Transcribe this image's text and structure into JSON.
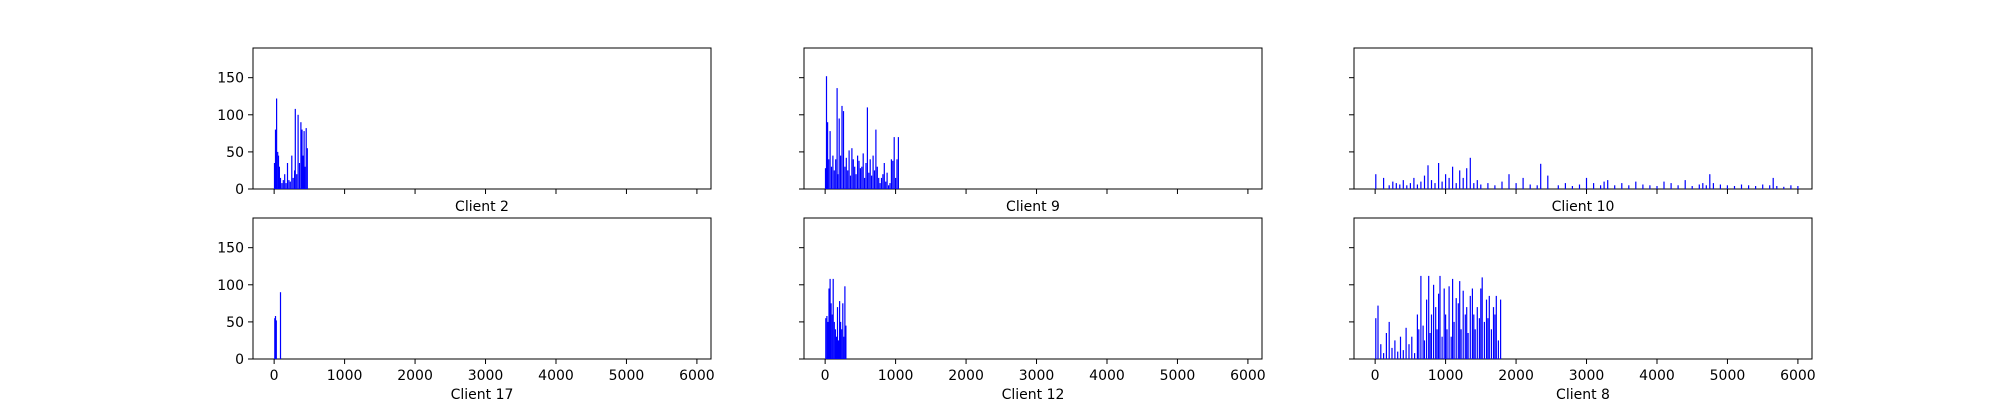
{
  "colors": {
    "bar": "#0000ff",
    "axis": "#000000",
    "background": "#ffffff"
  },
  "chart_data": [
    {
      "type": "bar",
      "title": "Client 2",
      "xlabel": "",
      "ylabel": "",
      "xlim": [
        -300,
        6200
      ],
      "ylim": [
        0,
        190
      ],
      "xticks": [
        0,
        1000,
        2000,
        3000,
        4000,
        5000,
        6000
      ],
      "yticks": [
        0,
        50,
        100,
        150
      ],
      "show_xticklabels": false,
      "show_yticklabels": true,
      "grid": false,
      "x": [
        5,
        20,
        35,
        50,
        62,
        75,
        90,
        110,
        130,
        150,
        170,
        190,
        210,
        230,
        250,
        270,
        290,
        300,
        320,
        340,
        360,
        380,
        395,
        410,
        425,
        440,
        455,
        470
      ],
      "values": [
        35,
        80,
        122,
        50,
        45,
        30,
        15,
        8,
        12,
        20,
        8,
        35,
        12,
        10,
        45,
        15,
        25,
        108,
        20,
        100,
        35,
        90,
        80,
        45,
        78,
        30,
        82,
        55
      ]
    },
    {
      "type": "bar",
      "title": "Client 9",
      "xlabel": "",
      "ylabel": "",
      "xlim": [
        -300,
        6200
      ],
      "ylim": [
        0,
        190
      ],
      "xticks": [
        0,
        1000,
        2000,
        3000,
        4000,
        5000,
        6000
      ],
      "yticks": [
        0,
        50,
        100,
        150
      ],
      "show_xticklabels": false,
      "show_yticklabels": false,
      "grid": false,
      "x": [
        5,
        20,
        35,
        50,
        70,
        90,
        110,
        130,
        150,
        170,
        180,
        200,
        220,
        240,
        260,
        280,
        300,
        320,
        340,
        360,
        380,
        400,
        420,
        440,
        460,
        480,
        500,
        520,
        540,
        560,
        580,
        600,
        620,
        640,
        660,
        680,
        700,
        720,
        740,
        760,
        780,
        800,
        820,
        840,
        860,
        880,
        900,
        920,
        940,
        960,
        980,
        1000,
        1020,
        1040
      ],
      "values": [
        28,
        152,
        90,
        40,
        78,
        30,
        45,
        25,
        40,
        136,
        20,
        95,
        45,
        112,
        105,
        30,
        42,
        25,
        52,
        18,
        55,
        40,
        30,
        20,
        45,
        38,
        28,
        30,
        48,
        15,
        35,
        110,
        22,
        40,
        18,
        45,
        25,
        80,
        30,
        15,
        8,
        15,
        20,
        35,
        10,
        22,
        5,
        8,
        40,
        38,
        70,
        15,
        40,
        70
      ]
    },
    {
      "type": "bar",
      "title": "Client 10",
      "xlabel": "",
      "ylabel": "",
      "xlim": [
        -300,
        6200
      ],
      "ylim": [
        0,
        190
      ],
      "xticks": [
        0,
        1000,
        2000,
        3000,
        4000,
        5000,
        6000
      ],
      "yticks": [
        0,
        50,
        100,
        150
      ],
      "show_xticklabels": false,
      "show_yticklabels": false,
      "grid": false,
      "x": [
        10,
        120,
        200,
        250,
        300,
        350,
        400,
        450,
        500,
        550,
        600,
        650,
        700,
        750,
        800,
        850,
        900,
        950,
        1000,
        1050,
        1100,
        1150,
        1200,
        1250,
        1300,
        1350,
        1400,
        1450,
        1500,
        1600,
        1700,
        1800,
        1900,
        2000,
        2100,
        2200,
        2300,
        2350,
        2450,
        2600,
        2700,
        2800,
        2900,
        3000,
        3100,
        3200,
        3250,
        3300,
        3400,
        3500,
        3600,
        3700,
        3800,
        3900,
        4000,
        4100,
        4200,
        4300,
        4400,
        4500,
        4600,
        4650,
        4700,
        4750,
        4800,
        4900,
        5000,
        5100,
        5200,
        5300,
        5400,
        5500,
        5600,
        5650,
        5700,
        5800,
        5900,
        6000
      ],
      "values": [
        20,
        15,
        5,
        10,
        8,
        6,
        12,
        5,
        8,
        15,
        6,
        10,
        18,
        32,
        12,
        8,
        35,
        10,
        20,
        15,
        30,
        8,
        25,
        15,
        28,
        42,
        8,
        12,
        6,
        8,
        5,
        10,
        20,
        8,
        15,
        6,
        5,
        34,
        18,
        5,
        8,
        4,
        6,
        15,
        8,
        5,
        10,
        12,
        5,
        8,
        5,
        10,
        6,
        5,
        4,
        10,
        8,
        5,
        12,
        4,
        6,
        8,
        5,
        20,
        8,
        6,
        5,
        4,
        6,
        5,
        4,
        6,
        5,
        15,
        4,
        3,
        5,
        4
      ]
    },
    {
      "type": "bar",
      "title": "Client 17",
      "xlabel": "",
      "ylabel": "",
      "xlim": [
        -300,
        6200
      ],
      "ylim": [
        0,
        190
      ],
      "xticks": [
        0,
        1000,
        2000,
        3000,
        4000,
        5000,
        6000
      ],
      "yticks": [
        0,
        50,
        100,
        150
      ],
      "show_xticklabels": true,
      "show_yticklabels": true,
      "grid": false,
      "x": [
        10,
        20,
        30,
        90
      ],
      "values": [
        55,
        58,
        52,
        90
      ]
    },
    {
      "type": "bar",
      "title": "Client 12",
      "xlabel": "",
      "ylabel": "",
      "xlim": [
        -300,
        6200
      ],
      "ylim": [
        0,
        190
      ],
      "xticks": [
        0,
        1000,
        2000,
        3000,
        4000,
        5000,
        6000
      ],
      "yticks": [
        0,
        50,
        100,
        150
      ],
      "show_xticklabels": true,
      "show_yticklabels": false,
      "grid": false,
      "x": [
        10,
        25,
        40,
        55,
        70,
        85,
        100,
        115,
        130,
        145,
        160,
        175,
        190,
        205,
        220,
        235,
        250,
        265,
        280,
        295
      ],
      "values": [
        55,
        58,
        50,
        95,
        108,
        75,
        60,
        108,
        50,
        40,
        30,
        70,
        25,
        78,
        50,
        40,
        75,
        30,
        98,
        45
      ]
    },
    {
      "type": "bar",
      "title": "Client 8",
      "xlabel": "",
      "ylabel": "",
      "xlim": [
        -300,
        6200
      ],
      "ylim": [
        0,
        190
      ],
      "xticks": [
        0,
        1000,
        2000,
        3000,
        4000,
        5000,
        6000
      ],
      "yticks": [
        0,
        50,
        100,
        150
      ],
      "show_xticklabels": true,
      "show_yticklabels": false,
      "grid": false,
      "x": [
        10,
        40,
        80,
        120,
        160,
        200,
        240,
        280,
        320,
        360,
        400,
        440,
        480,
        520,
        560,
        600,
        620,
        650,
        680,
        700,
        730,
        760,
        780,
        800,
        830,
        860,
        880,
        900,
        920,
        950,
        980,
        1000,
        1020,
        1050,
        1080,
        1100,
        1120,
        1150,
        1180,
        1200,
        1220,
        1250,
        1280,
        1300,
        1320,
        1350,
        1380,
        1400,
        1420,
        1450,
        1480,
        1500,
        1520,
        1550,
        1580,
        1600,
        1620,
        1650,
        1680,
        1700,
        1720,
        1750,
        1780
      ],
      "values": [
        55,
        72,
        20,
        8,
        35,
        50,
        15,
        25,
        10,
        30,
        12,
        42,
        20,
        30,
        8,
        60,
        40,
        112,
        45,
        25,
        80,
        112,
        35,
        60,
        100,
        70,
        40,
        88,
        112,
        30,
        95,
        60,
        40,
        98,
        30,
        108,
        50,
        82,
        75,
        105,
        40,
        92,
        60,
        70,
        35,
        85,
        95,
        60,
        40,
        70,
        55,
        95,
        110,
        50,
        80,
        55,
        85,
        40,
        70,
        60,
        85,
        25,
        80
      ]
    }
  ]
}
